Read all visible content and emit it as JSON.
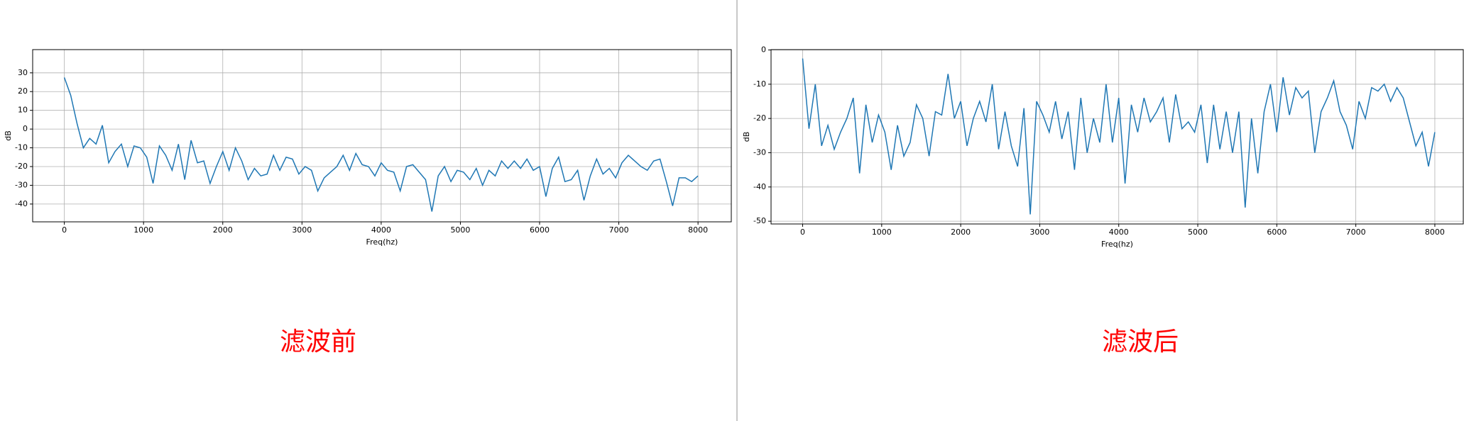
{
  "chart_data": [
    {
      "type": "line",
      "xlabel": "Freq(hz)",
      "ylabel": "dB",
      "annotation": "滤波前",
      "color": "#1f77b4",
      "grid": true,
      "xlim": [
        -400,
        8420
      ],
      "ylim": [
        -49.5,
        42.4
      ],
      "xticks": [
        0,
        1000,
        2000,
        3000,
        4000,
        5000,
        6000,
        7000,
        8000
      ],
      "yticks": [
        -40,
        -30,
        -20,
        -10,
        0,
        10,
        20,
        30
      ],
      "x": [
        0,
        80,
        160,
        240,
        320,
        400,
        480,
        560,
        640,
        720,
        800,
        880,
        960,
        1040,
        1120,
        1200,
        1280,
        1360,
        1440,
        1520,
        1600,
        1680,
        1760,
        1840,
        1920,
        2000,
        2080,
        2160,
        2240,
        2320,
        2400,
        2480,
        2560,
        2640,
        2720,
        2800,
        2880,
        2960,
        3040,
        3120,
        3200,
        3280,
        3360,
        3440,
        3520,
        3600,
        3680,
        3760,
        3840,
        3920,
        4000,
        4080,
        4160,
        4240,
        4320,
        4400,
        4480,
        4560,
        4640,
        4720,
        4800,
        4880,
        4960,
        5040,
        5120,
        5200,
        5280,
        5360,
        5440,
        5520,
        5600,
        5680,
        5760,
        5840,
        5920,
        6000,
        6080,
        6160,
        6240,
        6320,
        6400,
        6480,
        6560,
        6640,
        6720,
        6800,
        6880,
        6960,
        7040,
        7120,
        7200,
        7280,
        7360,
        7440,
        7520,
        7600,
        7680,
        7760,
        7840,
        7920,
        8000
      ],
      "values": [
        27.5,
        18,
        3,
        -10,
        -5,
        -8,
        2,
        -18,
        -12,
        -8,
        -20,
        -9,
        -10,
        -15,
        -29,
        -9,
        -14,
        -22,
        -8,
        -27,
        -6,
        -18,
        -17,
        -29,
        -20,
        -12,
        -22,
        -10,
        -17,
        -27,
        -21,
        -25,
        -24,
        -14,
        -22,
        -15,
        -16,
        -24,
        -20,
        -22,
        -33,
        -26,
        -23,
        -20,
        -14,
        -22,
        -13,
        -19,
        -20,
        -25,
        -18,
        -22,
        -23,
        -33,
        -20,
        -19,
        -23,
        -27,
        -44,
        -25,
        -20,
        -28,
        -22,
        -23,
        -27,
        -21,
        -30,
        -22,
        -25,
        -17,
        -21,
        -17,
        -21,
        -16,
        -22,
        -20,
        -36,
        -21,
        -15,
        -28,
        -27,
        -22,
        -38,
        -25,
        -16,
        -24,
        -21,
        -26,
        -18,
        -14,
        -17,
        -20,
        -22,
        -17,
        -16,
        -28,
        -41,
        -26,
        -26,
        -28,
        -25
      ]
    },
    {
      "type": "line",
      "xlabel": "Freq(hz)",
      "ylabel": "dB",
      "annotation": "滤波后",
      "color": "#1f77b4",
      "grid": true,
      "xlim": [
        -400,
        8360
      ],
      "ylim": [
        -50.8,
        0.1
      ],
      "xticks": [
        0,
        1000,
        2000,
        3000,
        4000,
        5000,
        6000,
        7000,
        8000
      ],
      "yticks": [
        -50,
        -40,
        -30,
        -20,
        -10,
        0
      ],
      "x": [
        0,
        80,
        160,
        240,
        320,
        400,
        480,
        560,
        640,
        720,
        800,
        880,
        960,
        1040,
        1120,
        1200,
        1280,
        1360,
        1440,
        1520,
        1600,
        1680,
        1760,
        1840,
        1920,
        2000,
        2080,
        2160,
        2240,
        2320,
        2400,
        2480,
        2560,
        2640,
        2720,
        2800,
        2880,
        2960,
        3040,
        3120,
        3200,
        3280,
        3360,
        3440,
        3520,
        3600,
        3680,
        3760,
        3840,
        3920,
        4000,
        4080,
        4160,
        4240,
        4320,
        4400,
        4480,
        4560,
        4640,
        4720,
        4800,
        4880,
        4960,
        5040,
        5120,
        5200,
        5280,
        5360,
        5440,
        5520,
        5600,
        5680,
        5760,
        5840,
        5920,
        6000,
        6080,
        6160,
        6240,
        6320,
        6400,
        6480,
        6560,
        6640,
        6720,
        6800,
        6880,
        6960,
        7040,
        7120,
        7200,
        7280,
        7360,
        7440,
        7520,
        7600,
        7680,
        7760,
        7840,
        7920,
        8000
      ],
      "values": [
        -2.5,
        -23,
        -10,
        -28,
        -22,
        -29,
        -24,
        -20,
        -14,
        -36,
        -16,
        -27,
        -19,
        -24,
        -35,
        -22,
        -31,
        -27,
        -16,
        -20,
        -31,
        -18,
        -19,
        -7,
        -20,
        -15,
        -28,
        -20,
        -15,
        -21,
        -10,
        -29,
        -18,
        -28,
        -34,
        -17,
        -48,
        -15,
        -19,
        -24,
        -15,
        -26,
        -18,
        -35,
        -14,
        -30,
        -20,
        -27,
        -10,
        -27,
        -14,
        -39,
        -16,
        -24,
        -14,
        -21,
        -18,
        -14,
        -27,
        -13,
        -23,
        -21,
        -24,
        -16,
        -33,
        -16,
        -29,
        -18,
        -30,
        -18,
        -46,
        -20,
        -36,
        -18,
        -10,
        -24,
        -8,
        -19,
        -11,
        -14,
        -12,
        -30,
        -18,
        -14,
        -9,
        -18,
        -22,
        -29,
        -15,
        -20,
        -11,
        -12,
        -10,
        -15,
        -11,
        -14,
        -21,
        -28,
        -24,
        -34,
        -24
      ]
    }
  ]
}
